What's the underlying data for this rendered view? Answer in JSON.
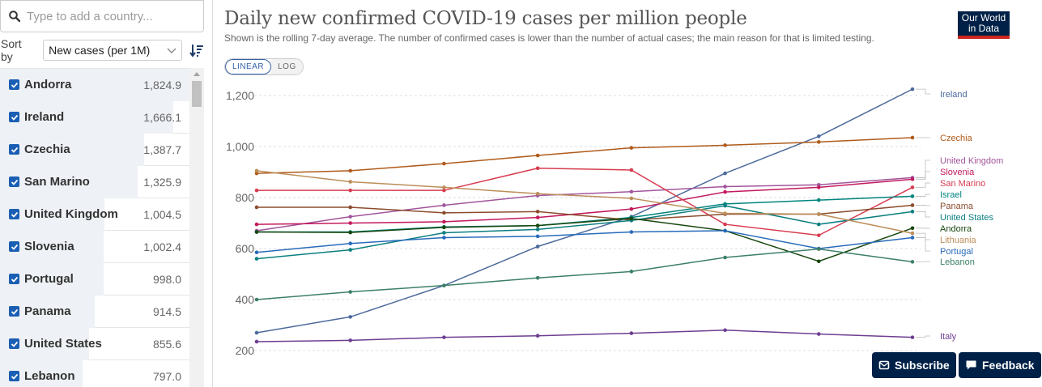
{
  "search": {
    "placeholder": "Type to add a country..."
  },
  "sort": {
    "label": "Sort by",
    "selected": "New cases (per 1M)"
  },
  "countries": [
    {
      "name": "Andorra",
      "value": "1,824.9",
      "fraction": 1.0,
      "checked": true
    },
    {
      "name": "Ireland",
      "value": "1,666.1",
      "fraction": 0.913,
      "checked": true
    },
    {
      "name": "Czechia",
      "value": "1,387.7",
      "fraction": 0.76,
      "checked": true
    },
    {
      "name": "San Marino",
      "value": "1,325.9",
      "fraction": 0.727,
      "checked": true
    },
    {
      "name": "United Kingdom",
      "value": "1,004.5",
      "fraction": 0.55,
      "checked": true
    },
    {
      "name": "Slovenia",
      "value": "1,002.4",
      "fraction": 0.549,
      "checked": true
    },
    {
      "name": "Portugal",
      "value": "998.0",
      "fraction": 0.547,
      "checked": true
    },
    {
      "name": "Panama",
      "value": "914.5",
      "fraction": 0.501,
      "checked": true
    },
    {
      "name": "United States",
      "value": "855.6",
      "fraction": 0.469,
      "checked": true
    },
    {
      "name": "Lebanon",
      "value": "797.0",
      "fraction": 0.437,
      "checked": true
    }
  ],
  "header": {
    "title": "Daily new confirmed COVID-19 cases per million people",
    "subtitle": "Shown is the rolling 7-day average. The number of confirmed cases is lower than the number of actual cases; the main reason for that is limited testing.",
    "logo_line1": "Our World",
    "logo_line2": "in Data"
  },
  "scale_toggle": {
    "linear": "LINEAR",
    "log": "LOG",
    "active": "LINEAR"
  },
  "buttons": {
    "subscribe": "Subscribe",
    "feedback": "Feedback"
  },
  "colors": {
    "navy": "#002147",
    "accent": "#3360a9",
    "logo_red": "#ce261e"
  },
  "chart_data": {
    "type": "line",
    "title": "Daily new confirmed COVID-19 cases per million people",
    "xlabel": "",
    "ylabel": "",
    "ylim": [
      200,
      1250
    ],
    "yticks": [
      200,
      400,
      600,
      800,
      1000,
      1200
    ],
    "grid": true,
    "legend": "right (end labels)",
    "x": [
      0,
      1,
      2,
      3,
      4,
      5,
      6,
      7
    ],
    "series": [
      {
        "name": "Ireland",
        "color": "#4c6a9c",
        "values": [
          270,
          332,
          455,
          608,
          725,
          895,
          1040,
          1225
        ]
      },
      {
        "name": "Czechia",
        "color": "#b05b1a",
        "values": [
          895,
          905,
          933,
          965,
          995,
          1005,
          1018,
          1035
        ]
      },
      {
        "name": "United Kingdom",
        "color": "#a2559c",
        "values": [
          670,
          725,
          770,
          808,
          823,
          843,
          850,
          878
        ]
      },
      {
        "name": "Slovenia",
        "color": "#c3195d",
        "values": [
          695,
          700,
          705,
          722,
          755,
          822,
          840,
          872
        ]
      },
      {
        "name": "San Marino",
        "color": "#d73c50",
        "values": [
          828,
          828,
          828,
          915,
          908,
          695,
          652,
          840
        ]
      },
      {
        "name": "Israel",
        "color": "#00847e",
        "values": [
          665,
          665,
          685,
          690,
          722,
          775,
          790,
          805
        ]
      },
      {
        "name": "Panama",
        "color": "#8c4c2e",
        "values": [
          762,
          762,
          740,
          745,
          712,
          735,
          735,
          770
        ]
      },
      {
        "name": "United States",
        "color": "#0b7f80",
        "values": [
          560,
          595,
          662,
          675,
          710,
          768,
          695,
          745
        ]
      },
      {
        "name": "Andorra",
        "color": "#18470f",
        "values": [
          665,
          663,
          683,
          690,
          718,
          670,
          550,
          680
        ]
      },
      {
        "name": "Lithuania",
        "color": "#bc8e5a",
        "values": [
          905,
          862,
          840,
          815,
          797,
          738,
          735,
          660
        ]
      },
      {
        "name": "Portugal",
        "color": "#286bbb",
        "values": [
          585,
          620,
          643,
          648,
          665,
          670,
          600,
          643
        ]
      },
      {
        "name": "Lebanon",
        "color": "#3c7f67",
        "values": [
          400,
          430,
          455,
          485,
          510,
          565,
          598,
          548
        ]
      },
      {
        "name": "Italy",
        "color": "#6d3e91",
        "values": [
          235,
          240,
          252,
          258,
          268,
          280,
          265,
          252
        ]
      }
    ]
  }
}
